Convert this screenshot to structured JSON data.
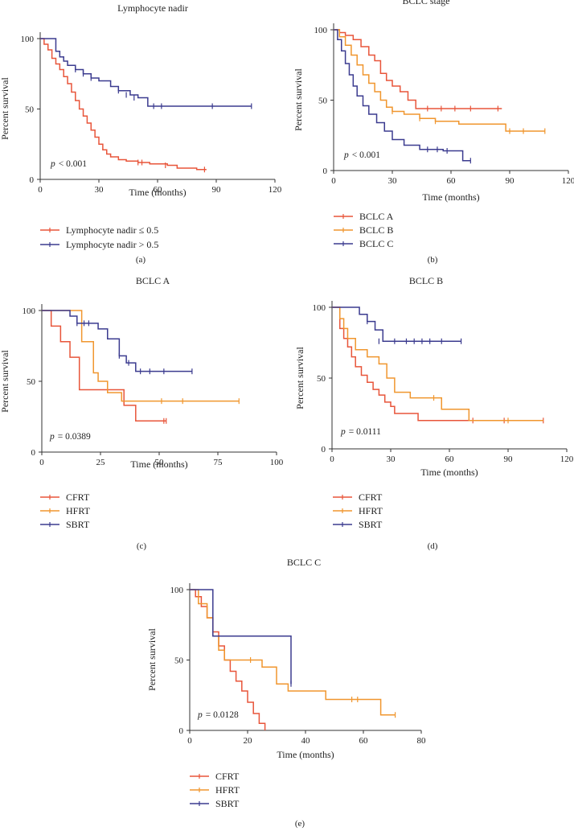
{
  "chart_data": [
    {
      "type": "line",
      "panel_label": "(a)",
      "title": "Lymphocyte nadir",
      "xlabel": "Time (months)",
      "ylabel": "Percent survival",
      "xlim": [
        0,
        120
      ],
      "ylim": [
        0,
        100
      ],
      "xticks": [
        "0",
        "30",
        "60",
        "90",
        "120"
      ],
      "yticks": [
        "0",
        "50",
        "100"
      ],
      "p_label": "p",
      "p_value": "< 0.001",
      "series": [
        {
          "name": "Lymphocyte nadir ≤ 0.5",
          "color": "#e8553a",
          "x": [
            0,
            2,
            4,
            6,
            8,
            10,
            12,
            14,
            16,
            18,
            20,
            22,
            24,
            26,
            28,
            30,
            32,
            34,
            36,
            40,
            44,
            50,
            56,
            60,
            65,
            70,
            80,
            85
          ],
          "y": [
            100,
            96,
            92,
            86,
            82,
            78,
            73,
            68,
            62,
            56,
            50,
            45,
            40,
            35,
            30,
            25,
            21,
            18,
            16,
            14,
            13,
            12,
            11,
            11,
            10,
            8,
            7,
            7
          ],
          "censor_x": [
            50,
            52,
            64,
            84
          ],
          "censor_y": [
            12,
            12,
            10,
            7
          ]
        },
        {
          "name": "Lymphocyte nadir > 0.5",
          "color": "#3b3b8f",
          "x": [
            0,
            6,
            8,
            10,
            12,
            14,
            18,
            22,
            26,
            30,
            36,
            40,
            46,
            50,
            55,
            58,
            62,
            66,
            108
          ],
          "y": [
            100,
            100,
            91,
            87,
            84,
            81,
            78,
            75,
            72,
            70,
            66,
            63,
            60,
            58,
            52,
            52,
            52,
            52,
            52
          ],
          "censor_x": [
            18,
            22,
            26,
            40,
            44,
            48,
            58,
            62,
            88,
            108
          ],
          "censor_y": [
            78,
            75,
            72,
            63,
            60,
            58,
            52,
            52,
            52,
            52
          ]
        }
      ]
    },
    {
      "type": "line",
      "panel_label": "(b)",
      "title": "BCLC stage",
      "xlabel": "Time (months)",
      "ylabel": "Percent survival",
      "xlim": [
        0,
        120
      ],
      "ylim": [
        0,
        100
      ],
      "xticks": [
        "0",
        "30",
        "60",
        "90",
        "120"
      ],
      "yticks": [
        "0",
        "50",
        "100"
      ],
      "p_label": "p",
      "p_value": "< 0.001",
      "series": [
        {
          "name": "BCLC A",
          "color": "#e8553a",
          "x": [
            0,
            3,
            6,
            10,
            14,
            18,
            21,
            24,
            27,
            30,
            34,
            38,
            42,
            86
          ],
          "y": [
            100,
            98,
            96,
            93,
            88,
            82,
            78,
            69,
            64,
            60,
            56,
            50,
            44,
            44
          ],
          "censor_x": [
            48,
            55,
            62,
            70,
            84
          ],
          "censor_y": [
            44,
            44,
            44,
            44,
            44
          ]
        },
        {
          "name": "BCLC B",
          "color": "#f0962e",
          "x": [
            0,
            3,
            6,
            9,
            12,
            15,
            18,
            21,
            24,
            27,
            30,
            36,
            44,
            52,
            64,
            88,
            108
          ],
          "y": [
            100,
            95,
            89,
            82,
            75,
            68,
            62,
            56,
            50,
            45,
            42,
            40,
            37,
            35,
            33,
            28,
            28
          ],
          "censor_x": [
            30,
            44,
            52,
            90,
            97,
            108
          ],
          "censor_y": [
            42,
            37,
            35,
            28,
            28,
            28
          ]
        },
        {
          "name": "BCLC C",
          "color": "#3b3b8f",
          "x": [
            0,
            2,
            4,
            6,
            8,
            10,
            12,
            15,
            18,
            22,
            26,
            30,
            36,
            44,
            56,
            66,
            70
          ],
          "y": [
            100,
            93,
            85,
            76,
            68,
            60,
            53,
            46,
            40,
            34,
            28,
            22,
            18,
            15,
            14,
            7,
            7
          ],
          "censor_x": [
            48,
            53,
            58,
            70
          ],
          "censor_y": [
            15,
            15,
            14,
            7
          ]
        }
      ]
    },
    {
      "type": "line",
      "panel_label": "(c)",
      "title": "BCLC A",
      "xlabel": "Time (months)",
      "ylabel": "Percent survival",
      "xlim": [
        0,
        100
      ],
      "ylim": [
        0,
        100
      ],
      "xticks": [
        "0",
        "25",
        "50",
        "75",
        "100"
      ],
      "yticks": [
        "0",
        "50",
        "100"
      ],
      "p_label": "p",
      "p_value": "= 0.0389",
      "series": [
        {
          "name": "CFRT",
          "color": "#e8553a",
          "x": [
            0,
            4,
            8,
            12,
            16,
            28,
            35,
            40,
            53
          ],
          "y": [
            100,
            89,
            78,
            67,
            44,
            44,
            33,
            22,
            22
          ],
          "censor_x": [
            52,
            53
          ],
          "censor_y": [
            22,
            22
          ]
        },
        {
          "name": "HFRT",
          "color": "#f0962e",
          "x": [
            0,
            12,
            17,
            22,
            24,
            28,
            34,
            84
          ],
          "y": [
            100,
            100,
            78,
            56,
            50,
            42,
            36,
            36
          ],
          "censor_x": [
            51,
            60,
            84
          ],
          "censor_y": [
            36,
            36,
            36
          ]
        },
        {
          "name": "SBRT",
          "color": "#3b3b8f",
          "x": [
            0,
            12,
            15,
            24,
            28,
            33,
            36,
            40,
            64
          ],
          "y": [
            100,
            96,
            91,
            87,
            80,
            68,
            63,
            57,
            57
          ],
          "censor_x": [
            15,
            18,
            20,
            33,
            37,
            42,
            46,
            52,
            64
          ],
          "censor_y": [
            91,
            91,
            91,
            68,
            63,
            57,
            57,
            57,
            57
          ]
        }
      ]
    },
    {
      "type": "line",
      "panel_label": "(d)",
      "title": "BCLC B",
      "xlabel": "Time (months)",
      "ylabel": "Percent survival",
      "xlim": [
        0,
        120
      ],
      "ylim": [
        0,
        100
      ],
      "xticks": [
        "0",
        "30",
        "60",
        "90",
        "120"
      ],
      "yticks": [
        "0",
        "50",
        "100"
      ],
      "p_label": "p",
      "p_value": "= 0.0111",
      "series": [
        {
          "name": "CFRT",
          "color": "#e8553a",
          "x": [
            0,
            4,
            6,
            8,
            10,
            12,
            15,
            18,
            21,
            24,
            27,
            30,
            32,
            36,
            44,
            108
          ],
          "y": [
            100,
            85,
            78,
            72,
            65,
            58,
            52,
            47,
            42,
            38,
            33,
            30,
            25,
            25,
            20,
            20
          ],
          "censor_x": [
            72,
            88,
            108
          ],
          "censor_y": [
            20,
            20,
            20
          ]
        },
        {
          "name": "HFRT",
          "color": "#f0962e",
          "x": [
            0,
            4,
            6,
            8,
            12,
            18,
            24,
            28,
            32,
            40,
            48,
            56,
            66,
            70,
            108
          ],
          "y": [
            100,
            92,
            85,
            78,
            70,
            65,
            60,
            50,
            40,
            36,
            36,
            28,
            28,
            20,
            20
          ],
          "censor_x": [
            52,
            90
          ],
          "censor_y": [
            36,
            20
          ]
        },
        {
          "name": "SBRT",
          "color": "#3b3b8f",
          "x": [
            0,
            8,
            14,
            18,
            22,
            26,
            66
          ],
          "y": [
            100,
            100,
            95,
            90,
            84,
            76,
            76
          ],
          "censor_x": [
            18,
            24,
            32,
            38,
            42,
            46,
            50,
            56,
            66
          ],
          "censor_y": [
            90,
            76,
            76,
            76,
            76,
            76,
            76,
            76,
            76
          ]
        }
      ]
    },
    {
      "type": "line",
      "panel_label": "(e)",
      "title": "BCLC C",
      "xlabel": "Time (months)",
      "ylabel": "Percent survival",
      "xlim": [
        0,
        80
      ],
      "ylim": [
        0,
        100
      ],
      "xticks": [
        "0",
        "20",
        "40",
        "60",
        "80"
      ],
      "yticks": [
        "0",
        "50",
        "100"
      ],
      "p_label": "p",
      "p_value": "= 0.0128",
      "series": [
        {
          "name": "CFRT",
          "color": "#e8553a",
          "x": [
            0,
            2,
            4,
            6,
            8,
            10,
            12,
            14,
            16,
            18,
            20,
            22,
            24,
            26
          ],
          "y": [
            100,
            95,
            88,
            80,
            70,
            60,
            50,
            42,
            35,
            28,
            20,
            12,
            5,
            0
          ],
          "censor_x": [],
          "censor_y": []
        },
        {
          "name": "HFRT",
          "color": "#f0962e",
          "x": [
            0,
            3,
            6,
            8,
            10,
            12,
            22,
            25,
            30,
            34,
            47,
            66,
            71
          ],
          "y": [
            100,
            90,
            80,
            67,
            57,
            50,
            50,
            45,
            33,
            28,
            22,
            11,
            11
          ],
          "censor_x": [
            21,
            56,
            58,
            71
          ],
          "censor_y": [
            50,
            22,
            22,
            11
          ]
        },
        {
          "name": "SBRT",
          "color": "#3b3b8f",
          "x": [
            0,
            7,
            8,
            34,
            35
          ],
          "y": [
            100,
            100,
            67,
            67,
            33
          ],
          "censor_x": [
            35
          ],
          "censor_y": [
            33
          ]
        }
      ]
    }
  ]
}
